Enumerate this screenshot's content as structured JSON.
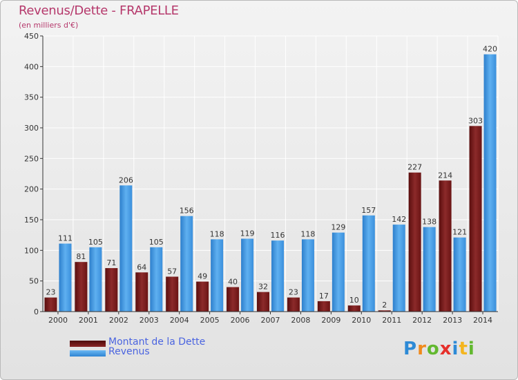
{
  "title": "Revenus/Dette - FRAPELLE",
  "subtitle": "(en milliers d'€)",
  "legend": {
    "debt_label": "Montant de la Dette",
    "revenue_label": "Revenus"
  },
  "logo": {
    "text": "Proxiti",
    "letters": [
      "P",
      "r",
      "o",
      "x",
      "i",
      "t",
      "i"
    ],
    "colors": [
      "#2d8ad6",
      "#f08a1c",
      "#62b82f",
      "#e6302b",
      "#2d8ad6",
      "#f4b51e",
      "#62b82f"
    ]
  },
  "colors": {
    "debt": "#7a1c1c",
    "revenue": "#3d93e0",
    "accent_text": "#b5386b"
  },
  "chart_data": {
    "type": "bar",
    "title": "Revenus/Dette - FRAPELLE",
    "subtitle": "(en milliers d'€)",
    "categories": [
      "2000",
      "2001",
      "2002",
      "2003",
      "2004",
      "2005",
      "2006",
      "2007",
      "2008",
      "2009",
      "2010",
      "2011",
      "2012",
      "2013",
      "2014"
    ],
    "series": [
      {
        "name": "Montant de la Dette",
        "values": [
          23,
          81,
          71,
          64,
          57,
          49,
          40,
          32,
          23,
          17,
          10,
          2,
          227,
          214,
          303
        ]
      },
      {
        "name": "Revenus",
        "values": [
          111,
          105,
          206,
          105,
          156,
          118,
          119,
          116,
          118,
          129,
          157,
          142,
          138,
          121,
          420
        ]
      }
    ],
    "ylim": [
      0,
      450
    ],
    "yticks": [
      0,
      50,
      100,
      150,
      200,
      250,
      300,
      350,
      400,
      450
    ],
    "grid": true,
    "legend_position": "bottom-left"
  }
}
